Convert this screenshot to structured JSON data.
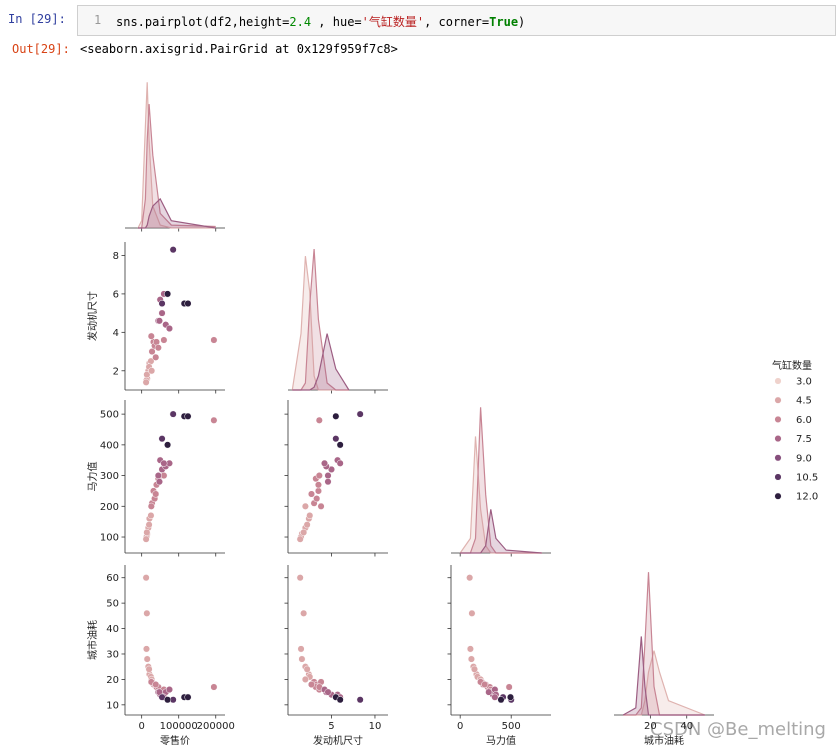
{
  "cell": {
    "prompt_in": "In  [29]:",
    "line_number": "1",
    "code": [
      "sns.pairplot(df2,height=",
      "2.4",
      " , hue=",
      "'气缸数量'",
      ", corner=",
      "True",
      ")"
    ],
    "prompt_out": "Out[29]:",
    "output": "<seaborn.axisgrid.PairGrid at 0x129f959f7c8>"
  },
  "watermark": "CSDN @Be_melting",
  "chart_data": {
    "type": "pairplot",
    "corner": true,
    "variables": [
      {
        "name": "零售价",
        "lim": [
          -45000,
          225000
        ],
        "ticks": [
          0,
          100000,
          200000
        ],
        "kde": {
          "ylim": [
            0,
            1.05
          ],
          "series": [
            {
              "color": "#dfb3b0",
              "x": [
                -10000,
                0,
                10000,
                15000,
                20000,
                30000,
                50000,
                80000,
                200000
              ],
              "y": [
                0,
                0.05,
                0.7,
                1.0,
                0.6,
                0.15,
                0.02,
                0,
                0
              ]
            },
            {
              "color": "#c88594",
              "x": [
                -10000,
                0,
                10000,
                15000,
                20000,
                30000,
                50000,
                80000,
                200000
              ],
              "y": [
                0,
                0,
                0.2,
                0.6,
                0.85,
                0.5,
                0.1,
                0.02,
                0.01
              ]
            },
            {
              "color": "#9c5d82",
              "x": [
                -10000,
                0,
                10000,
                15000,
                20000,
                30000,
                50000,
                80000,
                200000
              ],
              "y": [
                0,
                0,
                0,
                0.02,
                0.08,
                0.15,
                0.2,
                0.05,
                0
              ]
            }
          ]
        }
      },
      {
        "name": "发动机尺寸",
        "lim": [
          0,
          11.5
        ],
        "ticks": [
          5,
          10
        ],
        "kde": {
          "ylim": [
            0,
            1.05
          ],
          "series": [
            {
              "color": "#dfb3b0",
              "x": [
                0.5,
                1.5,
                2,
                2.5,
                3,
                3.5,
                4.5,
                5.5,
                7
              ],
              "y": [
                0,
                0.4,
                0.95,
                0.7,
                0.1,
                0,
                0,
                0,
                0
              ]
            },
            {
              "color": "#c88594",
              "x": [
                0.5,
                1.5,
                2,
                2.5,
                3,
                3.5,
                4.5,
                5.5,
                7
              ],
              "y": [
                0,
                0,
                0.05,
                0.6,
                1.0,
                0.5,
                0.05,
                0,
                0
              ]
            },
            {
              "color": "#9c5d82",
              "x": [
                0.5,
                1.5,
                2,
                2.5,
                3,
                3.5,
                4.5,
                5.5,
                7
              ],
              "y": [
                0,
                0,
                0,
                0,
                0.02,
                0.1,
                0.4,
                0.15,
                0
              ]
            }
          ]
        },
        "axis_lim": [
          1.0,
          8.7
        ],
        "axis_ticks": [
          2,
          4,
          6,
          8
        ]
      },
      {
        "name": "马力值",
        "lim": [
          -90,
          890
        ],
        "ticks": [
          0,
          500
        ],
        "kde": {
          "ylim": [
            0,
            1.05
          ],
          "series": [
            {
              "color": "#dfb3b0",
              "x": [
                0,
                100,
                150,
                200,
                250,
                300,
                350,
                450,
                800
              ],
              "y": [
                0,
                0.1,
                0.8,
                0.3,
                0.05,
                0,
                0,
                0,
                0
              ]
            },
            {
              "color": "#c88594",
              "x": [
                0,
                100,
                150,
                200,
                250,
                300,
                350,
                450,
                800
              ],
              "y": [
                0,
                0,
                0.1,
                1.0,
                0.4,
                0.05,
                0,
                0,
                0
              ]
            },
            {
              "color": "#9c5d82",
              "x": [
                0,
                100,
                150,
                200,
                250,
                300,
                350,
                450,
                800
              ],
              "y": [
                0,
                0,
                0,
                0,
                0.05,
                0.3,
                0.1,
                0.02,
                0
              ]
            }
          ]
        },
        "axis_lim": [
          48,
          546
        ],
        "axis_ticks": [
          100,
          200,
          300,
          400,
          500
        ]
      },
      {
        "name": "城市油耗",
        "lim": [
          0,
          55
        ],
        "ticks": [
          20,
          40
        ],
        "kde": {
          "ylim": [
            0,
            1.05
          ],
          "series": [
            {
              "color": "#dfb3b0",
              "x": [
                5,
                12,
                15,
                17,
                19,
                22,
                25,
                30,
                50
              ],
              "y": [
                0,
                0,
                0,
                0.1,
                0.3,
                0.45,
                0.3,
                0.1,
                0
              ]
            },
            {
              "color": "#c88594",
              "x": [
                5,
                12,
                15,
                17,
                19,
                22,
                25,
                30,
                50
              ],
              "y": [
                0,
                0,
                0.05,
                0.5,
                1.0,
                0.2,
                0,
                0,
                0
              ]
            },
            {
              "color": "#9c5d82",
              "x": [
                5,
                12,
                15,
                17,
                19,
                22,
                25,
                30,
                50
              ],
              "y": [
                0,
                0.05,
                0.55,
                0.2,
                0,
                0,
                0,
                0,
                0
              ]
            }
          ]
        },
        "axis_lim": [
          6,
          65
        ],
        "axis_ticks": [
          10,
          20,
          30,
          40,
          50,
          60
        ]
      }
    ],
    "points": [
      [
        15000,
        1.6,
        110,
        28,
        4
      ],
      [
        18000,
        2.0,
        130,
        25,
        4
      ],
      [
        13000,
        1.5,
        100,
        32,
        4
      ],
      [
        21000,
        2.4,
        160,
        22,
        4
      ],
      [
        25000,
        2.5,
        170,
        21,
        4
      ],
      [
        12000,
        1.4,
        93,
        60,
        4
      ],
      [
        14000,
        1.8,
        115,
        46,
        4
      ],
      [
        20000,
        2.2,
        140,
        24,
        4
      ],
      [
        27000,
        2.0,
        200,
        20,
        4
      ],
      [
        28000,
        3.0,
        210,
        19,
        6
      ],
      [
        32000,
        3.5,
        250,
        18,
        6
      ],
      [
        35000,
        3.3,
        225,
        18,
        6
      ],
      [
        40000,
        3.5,
        270,
        17,
        6
      ],
      [
        45000,
        3.2,
        290,
        17,
        6
      ],
      [
        60000,
        3.6,
        300,
        16,
        6
      ],
      [
        26000,
        3.8,
        200,
        19,
        6
      ],
      [
        195000,
        3.6,
        480,
        17,
        6
      ],
      [
        38000,
        2.7,
        240,
        18,
        6
      ],
      [
        45000,
        4.6,
        300,
        15,
        8
      ],
      [
        55000,
        5.0,
        320,
        14,
        8
      ],
      [
        65000,
        4.4,
        330,
        15,
        8
      ],
      [
        75000,
        4.2,
        340,
        16,
        8
      ],
      [
        50000,
        5.7,
        350,
        14,
        8
      ],
      [
        48000,
        4.6,
        280,
        15,
        8
      ],
      [
        60000,
        6.0,
        340,
        13,
        8
      ],
      [
        85000,
        8.3,
        500,
        12,
        10
      ],
      [
        55000,
        5.5,
        420,
        13,
        10
      ],
      [
        115000,
        5.5,
        493,
        13,
        12
      ],
      [
        125000,
        5.5,
        493,
        13,
        12
      ],
      [
        70000,
        6.0,
        400,
        12,
        12
      ]
    ],
    "hue": {
      "title": "气缸数量",
      "levels": [
        {
          "value": 3,
          "label": "3.0"
        },
        {
          "value": 4.5,
          "label": "4.5"
        },
        {
          "value": 6,
          "label": "6.0"
        },
        {
          "value": 7.5,
          "label": "7.5"
        },
        {
          "value": 9,
          "label": "9.0"
        },
        {
          "value": 10.5,
          "label": "10.5"
        },
        {
          "value": 12,
          "label": "12.0"
        }
      ],
      "colors": [
        "#efd2cc",
        "#dba7a8",
        "#c88594",
        "#a96688",
        "#864e7c",
        "#5b3664",
        "#2d1e3e"
      ]
    }
  }
}
